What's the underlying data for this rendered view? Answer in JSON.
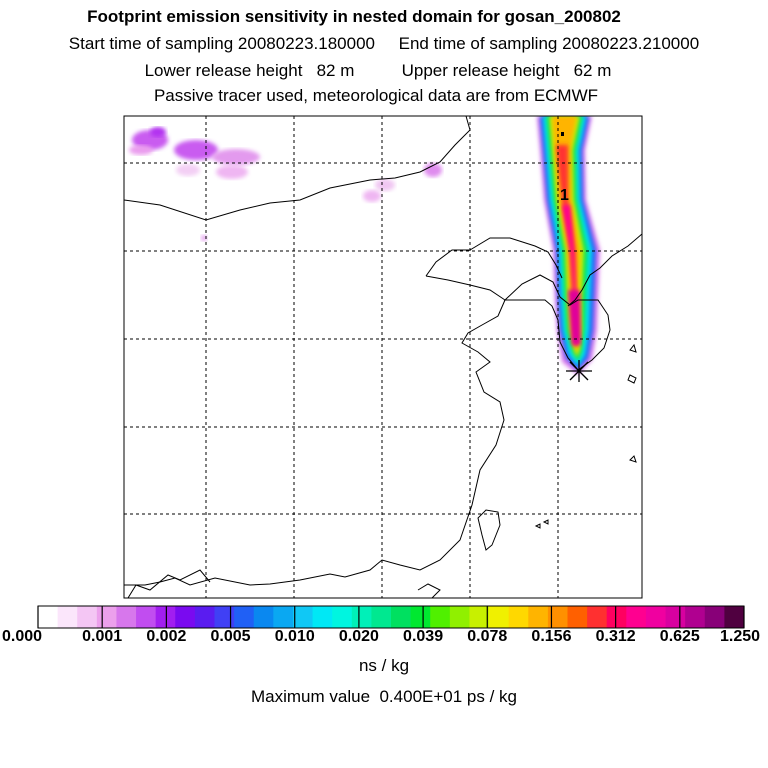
{
  "header": {
    "title": "Footprint emission sensitivity in nested domain for gosan_200802",
    "line2": "Start time of sampling 20080223.180000     End time of sampling 20080223.210000",
    "line3": "Lower release height   82 m          Upper release height   62 m",
    "line4": "Passive tracer used, meteorological data are from ECMWF"
  },
  "map": {
    "plume_marker_label": "1",
    "receptor_marker": "asterisk-marker"
  },
  "colorbar": {
    "labels": [
      "0.000",
      "0.001",
      "0.002",
      "0.005",
      "0.010",
      "0.020",
      "0.039",
      "0.078",
      "0.156",
      "0.312",
      "0.625",
      "1.250"
    ],
    "colors": [
      "#ffffff",
      "#fbe6fb",
      "#f4c6f4",
      "#eca0ec",
      "#d777ec",
      "#c14df0",
      "#a21ef0",
      "#7a0af0",
      "#5a1cf0",
      "#4040f5",
      "#2060f5",
      "#0a88f0",
      "#0aa8f2",
      "#10c8f5",
      "#00e8f5",
      "#00f5e0",
      "#00f0b8",
      "#00e890",
      "#00e060",
      "#00e830",
      "#50f000",
      "#90f000",
      "#c8f000",
      "#f0f000",
      "#ffd800",
      "#ffb400",
      "#ff9000",
      "#ff6000",
      "#ff3030",
      "#ff0060",
      "#ff0090",
      "#f000a0",
      "#d800a0",
      "#b00090",
      "#880078",
      "#500040"
    ],
    "units": "ns / kg",
    "max_text": "Maximum value  0.400E+01 ps / kg"
  }
}
